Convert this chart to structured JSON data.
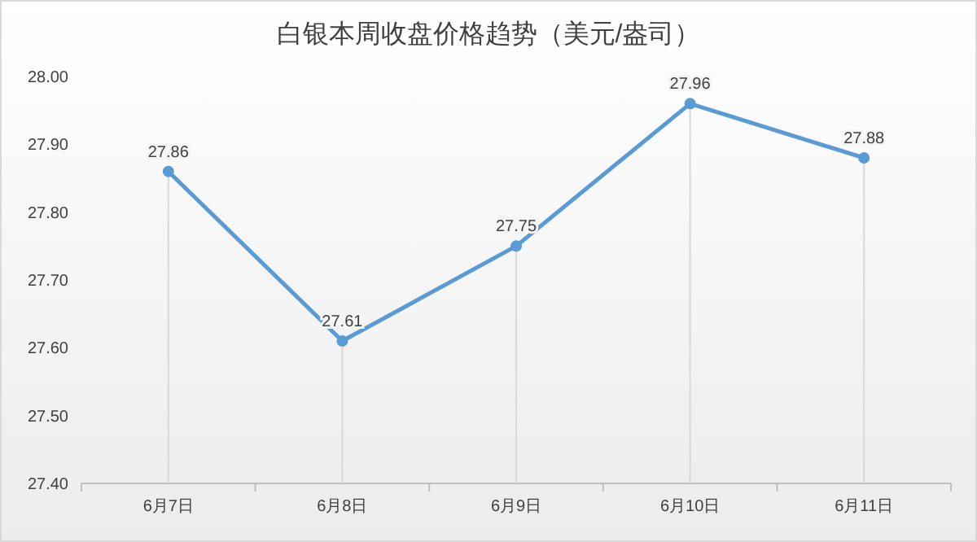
{
  "chart_data": {
    "type": "line",
    "title": "白银本周收盘价格趋势（美元/盎司）",
    "categories": [
      "6月7日",
      "6月8日",
      "6月9日",
      "6月10日",
      "6月11日"
    ],
    "series": [
      {
        "color": "#5b9bd5",
        "values": [
          27.86,
          27.61,
          27.75,
          27.96,
          27.88
        ]
      }
    ],
    "ylim": [
      27.4,
      28.0
    ],
    "yticks": [
      {
        "value": 27.4,
        "label": "27.40"
      },
      {
        "value": 27.5,
        "label": "27.50"
      },
      {
        "value": 27.6,
        "label": "27.60"
      },
      {
        "value": 27.7,
        "label": "27.70"
      },
      {
        "value": 27.8,
        "label": "27.80"
      },
      {
        "value": 27.9,
        "label": "27.90"
      },
      {
        "value": 28.0,
        "label": "28.00"
      }
    ],
    "grid": "x",
    "marker": "circle",
    "data_labels": true
  }
}
